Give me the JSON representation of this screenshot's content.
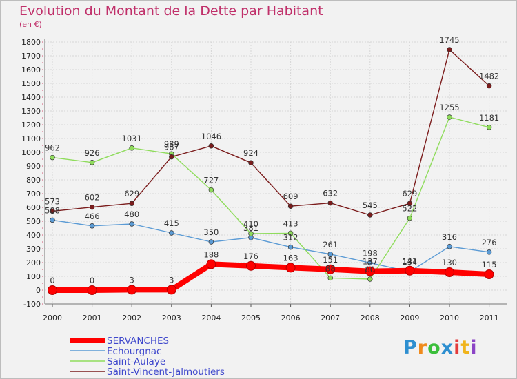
{
  "chart_data": {
    "type": "line",
    "title": "Evolution du Montant de la Dette par Habitant",
    "ylabel": "(en €)",
    "xlabel": "",
    "ylim": [
      -100,
      1800
    ],
    "yticks": [
      -100,
      0,
      100,
      200,
      300,
      400,
      500,
      600,
      700,
      800,
      900,
      1000,
      1100,
      1200,
      1300,
      1400,
      1500,
      1600,
      1700,
      1800
    ],
    "categories": [
      "2000",
      "2001",
      "2002",
      "2003",
      "2004",
      "2005",
      "2006",
      "2007",
      "2008",
      "2009",
      "2010",
      "2011"
    ],
    "grid": true,
    "legend": "bottom-left",
    "series": [
      {
        "name": "SERVANCHES",
        "color": "#ff0000",
        "bold": true,
        "values": [
          0,
          0,
          3,
          3,
          188,
          176,
          163,
          151,
          137,
          141,
          130,
          115
        ]
      },
      {
        "name": "Echourgnac",
        "color": "#5b9bd5",
        "values": [
          508,
          466,
          480,
          415,
          350,
          381,
          312,
          261,
          198,
          134,
          316,
          276
        ]
      },
      {
        "name": "Saint-Aulaye",
        "color": "#8fdc5c",
        "values": [
          962,
          926,
          1031,
          989,
          727,
          410,
          413,
          88,
          80,
          522,
          1255,
          1181
        ]
      },
      {
        "name": "Saint-Vincent-Jalmoutiers",
        "color": "#7b1c1c",
        "values": [
          573,
          602,
          629,
          967,
          1046,
          924,
          609,
          632,
          545,
          629,
          1745,
          1482
        ]
      }
    ]
  },
  "logo": {
    "letters": [
      "P",
      "r",
      "o",
      "x",
      "i",
      "t",
      "i"
    ],
    "colors": [
      "#2e8fd0",
      "#f08a1c",
      "#3bbf3b",
      "#2e8fd0",
      "#e33b3b",
      "#f0b41c",
      "#8c44c6"
    ]
  }
}
